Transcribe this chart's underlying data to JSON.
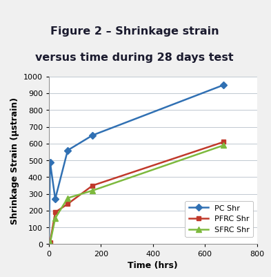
{
  "title_line1": "Figure 2 – Shrinkage strain",
  "title_line2": "versus time during 28 days test",
  "title_bg_color": "#F5A623",
  "title_text_color": "#1a1a2e",
  "xlabel": "Time (hrs)",
  "ylabel": "Shrinkage Strain (μstrain)",
  "xlim": [
    0,
    800
  ],
  "ylim": [
    0,
    1000
  ],
  "xticks": [
    0,
    200,
    400,
    600,
    800
  ],
  "yticks": [
    0,
    100,
    200,
    300,
    400,
    500,
    600,
    700,
    800,
    900,
    1000
  ],
  "pc_x": [
    0,
    4,
    24,
    72,
    168,
    672
  ],
  "pc_y": [
    0,
    490,
    270,
    560,
    650,
    950
  ],
  "pfrc_x": [
    0,
    4,
    24,
    72,
    168,
    672
  ],
  "pfrc_y": [
    0,
    10,
    190,
    240,
    350,
    610
  ],
  "sfrc_x": [
    0,
    4,
    24,
    72,
    168,
    672
  ],
  "sfrc_y": [
    0,
    5,
    155,
    275,
    320,
    590
  ],
  "pc_color": "#3070B3",
  "pfrc_color": "#C0392B",
  "sfrc_color": "#7DB93D",
  "legend_labels": [
    "PC Shr",
    "PFRC Shr",
    "SFRC Shr"
  ],
  "bg_color": "#f0f0f0",
  "plot_bg_color": "#ffffff",
  "grid_color": "#c0c8d0",
  "title_fontsize": 11.5,
  "axis_label_fontsize": 9,
  "tick_fontsize": 8,
  "legend_fontsize": 8
}
